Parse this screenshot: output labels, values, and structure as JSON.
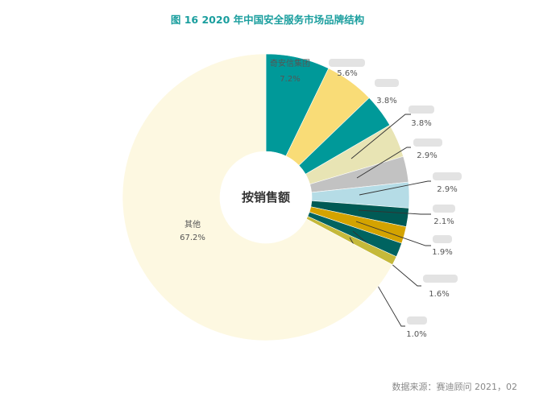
{
  "chart_data": {
    "type": "pie",
    "title": "图  16    2020 年中国安全服务市场品牌结构",
    "center_label": "按销售额",
    "slices": [
      {
        "name": "奇安信集团",
        "value": 7.2,
        "label": "7.2%",
        "color": "#009999"
      },
      {
        "name": "",
        "value": 5.6,
        "label": "5.6%",
        "color": "#f9dc77",
        "name_blurred": true
      },
      {
        "name": "",
        "value": 3.8,
        "label": "3.8%",
        "color": "#009999",
        "name_blurred": true
      },
      {
        "name": "",
        "value": 3.8,
        "label": "3.8%",
        "color": "#e8e4b4",
        "name_blurred": true
      },
      {
        "name": "",
        "value": 2.9,
        "label": "2.9%",
        "color": "#c2c2c2",
        "name_blurred": true
      },
      {
        "name": "",
        "value": 2.9,
        "label": "2.9%",
        "color": "#b5dce6",
        "name_blurred": true
      },
      {
        "name": "",
        "value": 2.1,
        "label": "2.1%",
        "color": "#005a55",
        "name_blurred": true
      },
      {
        "name": "",
        "value": 1.9,
        "label": "1.9%",
        "color": "#d4a300",
        "name_blurred": true
      },
      {
        "name": "",
        "value": 1.6,
        "label": "1.6%",
        "color": "#006360",
        "name_blurred": true
      },
      {
        "name": "",
        "value": 1.0,
        "label": "1.0%",
        "color": "#c5b93a",
        "name_blurred": true
      },
      {
        "name": "其他",
        "value": 67.2,
        "label": "67.2%",
        "color": "#fdf8e1"
      }
    ]
  },
  "source": "数据来源：赛迪顾问    2021，02"
}
